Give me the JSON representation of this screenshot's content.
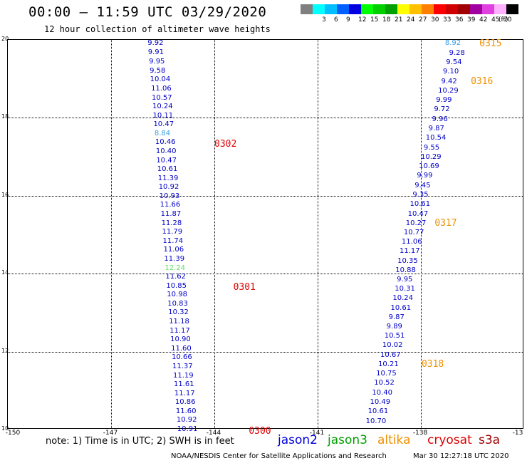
{
  "header": {
    "title": "00:00 – 11:59 UTC 03/29/2020",
    "subtitle": "12 hour collection of altimeter wave heights"
  },
  "legend": {
    "unit": "(ft)",
    "bins": [
      {
        "label": "",
        "color": "#808080"
      },
      {
        "label": "3",
        "color": "#00ffff"
      },
      {
        "label": "6",
        "color": "#00bfff"
      },
      {
        "label": "9",
        "color": "#0060ff"
      },
      {
        "label": "12",
        "color": "#0000e0"
      },
      {
        "label": "15",
        "color": "#00ff00"
      },
      {
        "label": "18",
        "color": "#00d000"
      },
      {
        "label": "21",
        "color": "#00a000"
      },
      {
        "label": "24",
        "color": "#ffff00"
      },
      {
        "label": "27",
        "color": "#ffc000"
      },
      {
        "label": "30",
        "color": "#ff8000"
      },
      {
        "label": "33",
        "color": "#ff0000"
      },
      {
        "label": "36",
        "color": "#d00000"
      },
      {
        "label": "39",
        "color": "#a00000"
      },
      {
        "label": "42",
        "color": "#a000a0"
      },
      {
        "label": "45",
        "color": "#e040e0"
      },
      {
        "label": "70",
        "color": "#ffb0ff"
      },
      {
        "label": "",
        "color": "#000000"
      }
    ]
  },
  "axes": {
    "xlim": [
      -150,
      -135
    ],
    "ylim": [
      10,
      20
    ],
    "x_ticks": [
      "-150",
      "-147",
      "-144",
      "-141",
      "-138",
      "-13"
    ],
    "y_ticks": [
      "20",
      "18",
      "16",
      "14",
      "12",
      "10"
    ]
  },
  "chart_data": {
    "type": "scatter",
    "title": "12 hour collection of altimeter wave heights",
    "unit": "ft",
    "tracks": [
      {
        "name": "jason2",
        "points": [
          {
            "lon": -145.94,
            "lat": 19.9,
            "value": "9.92",
            "color": "#0000c8"
          },
          {
            "lon": -145.93,
            "lat": 19.67,
            "value": "9.91",
            "color": "#0000c8"
          },
          {
            "lon": -145.9,
            "lat": 19.44,
            "value": "9.95",
            "color": "#0000c8"
          },
          {
            "lon": -145.88,
            "lat": 19.2,
            "value": "9.58",
            "color": "#0000c8"
          },
          {
            "lon": -145.87,
            "lat": 18.97,
            "value": "10.04",
            "color": "#0000c8"
          },
          {
            "lon": -145.84,
            "lat": 18.74,
            "value": "11.06",
            "color": "#0000c8"
          },
          {
            "lon": -145.82,
            "lat": 18.51,
            "value": "10.57",
            "color": "#0000c8"
          },
          {
            "lon": -145.8,
            "lat": 18.28,
            "value": "10.24",
            "color": "#0000c8"
          },
          {
            "lon": -145.79,
            "lat": 18.05,
            "value": "10.11",
            "color": "#0000c8"
          },
          {
            "lon": -145.77,
            "lat": 17.82,
            "value": "10.47",
            "color": "#0000c8"
          },
          {
            "lon": -145.74,
            "lat": 17.59,
            "value": "8.84",
            "color": "#3aa0e8"
          },
          {
            "lon": -145.72,
            "lat": 17.36,
            "value": "10.46",
            "color": "#0000c8"
          },
          {
            "lon": -145.7,
            "lat": 17.13,
            "value": "10.40",
            "color": "#0000c8"
          },
          {
            "lon": -145.69,
            "lat": 16.9,
            "value": "10.47",
            "color": "#0000c8"
          },
          {
            "lon": -145.66,
            "lat": 16.67,
            "value": "10.61",
            "color": "#0000c8"
          },
          {
            "lon": -145.64,
            "lat": 16.44,
            "value": "11.39",
            "color": "#0000c8"
          },
          {
            "lon": -145.62,
            "lat": 16.21,
            "value": "10.92",
            "color": "#0000c8"
          },
          {
            "lon": -145.6,
            "lat": 15.98,
            "value": "10.93",
            "color": "#0000c8"
          },
          {
            "lon": -145.58,
            "lat": 15.75,
            "value": "11.66",
            "color": "#0000c8"
          },
          {
            "lon": -145.56,
            "lat": 15.52,
            "value": "11.87",
            "color": "#0000c8"
          },
          {
            "lon": -145.54,
            "lat": 15.29,
            "value": "11.28",
            "color": "#0000c8"
          },
          {
            "lon": -145.52,
            "lat": 15.06,
            "value": "11.79",
            "color": "#0000c8"
          },
          {
            "lon": -145.5,
            "lat": 14.83,
            "value": "11.74",
            "color": "#0000c8"
          },
          {
            "lon": -145.48,
            "lat": 14.6,
            "value": "11.06",
            "color": "#0000c8"
          },
          {
            "lon": -145.46,
            "lat": 14.37,
            "value": "11.39",
            "color": "#0000c8"
          },
          {
            "lon": -145.44,
            "lat": 14.14,
            "value": "12.24",
            "color": "#60e060"
          },
          {
            "lon": -145.42,
            "lat": 13.91,
            "value": "11.62",
            "color": "#0000c8"
          },
          {
            "lon": -145.4,
            "lat": 13.68,
            "value": "10.85",
            "color": "#0000c8"
          },
          {
            "lon": -145.38,
            "lat": 13.45,
            "value": "10.98",
            "color": "#0000c8"
          },
          {
            "lon": -145.36,
            "lat": 13.22,
            "value": "10.83",
            "color": "#0000c8"
          },
          {
            "lon": -145.34,
            "lat": 12.99,
            "value": "10.32",
            "color": "#0000c8"
          },
          {
            "lon": -145.32,
            "lat": 12.76,
            "value": "11.18",
            "color": "#0000c8"
          },
          {
            "lon": -145.3,
            "lat": 12.53,
            "value": "11.17",
            "color": "#0000c8"
          },
          {
            "lon": -145.28,
            "lat": 12.3,
            "value": "10.90",
            "color": "#0000c8"
          },
          {
            "lon": -145.26,
            "lat": 12.07,
            "value": "11.60",
            "color": "#0000c8"
          },
          {
            "lon": -145.24,
            "lat": 11.84,
            "value": "10.66",
            "color": "#0000c8"
          },
          {
            "lon": -145.22,
            "lat": 11.61,
            "value": "11.37",
            "color": "#0000c8"
          },
          {
            "lon": -145.2,
            "lat": 11.38,
            "value": "11.19",
            "color": "#0000c8"
          },
          {
            "lon": -145.18,
            "lat": 11.15,
            "value": "11.61",
            "color": "#0000c8"
          },
          {
            "lon": -145.16,
            "lat": 10.92,
            "value": "11.17",
            "color": "#0000c8"
          },
          {
            "lon": -145.14,
            "lat": 10.69,
            "value": "10.86",
            "color": "#0000c8"
          },
          {
            "lon": -145.12,
            "lat": 10.46,
            "value": "11.60",
            "color": "#0000c8"
          },
          {
            "lon": -145.1,
            "lat": 10.23,
            "value": "10.92",
            "color": "#0000c8"
          },
          {
            "lon": -145.08,
            "lat": 10.0,
            "value": "10.91",
            "color": "#0000c8"
          }
        ],
        "date_labels": [
          {
            "lon": -144.0,
            "lat": 17.33,
            "text": "0302",
            "color": "#e00000"
          },
          {
            "lon": -143.45,
            "lat": 13.65,
            "text": "0301",
            "color": "#e00000"
          },
          {
            "lon": -143.0,
            "lat": 9.97,
            "text": "0300",
            "color": "#e00000"
          }
        ]
      },
      {
        "name": "altika",
        "points": [
          {
            "lon": -137.3,
            "lat": 19.9,
            "value": "8.92",
            "color": "#3aa0e8"
          },
          {
            "lon": -137.18,
            "lat": 19.65,
            "value": "9.28",
            "color": "#0000c8"
          },
          {
            "lon": -137.27,
            "lat": 19.41,
            "value": "9.54",
            "color": "#0000c8"
          },
          {
            "lon": -137.36,
            "lat": 19.17,
            "value": "9.10",
            "color": "#0000c8"
          },
          {
            "lon": -137.41,
            "lat": 18.93,
            "value": "9.42",
            "color": "#0000c8"
          },
          {
            "lon": -137.5,
            "lat": 18.68,
            "value": "10.29",
            "color": "#0000c8"
          },
          {
            "lon": -137.56,
            "lat": 18.44,
            "value": "9.99",
            "color": "#0000c8"
          },
          {
            "lon": -137.62,
            "lat": 18.2,
            "value": "9.72",
            "color": "#0000c8"
          },
          {
            "lon": -137.68,
            "lat": 17.96,
            "value": "9.96",
            "color": "#0000c8"
          },
          {
            "lon": -137.78,
            "lat": 17.72,
            "value": "9.87",
            "color": "#0000c8"
          },
          {
            "lon": -137.86,
            "lat": 17.47,
            "value": "10.54",
            "color": "#0000c8"
          },
          {
            "lon": -137.92,
            "lat": 17.23,
            "value": "9.55",
            "color": "#0000c8"
          },
          {
            "lon": -138.0,
            "lat": 16.99,
            "value": "10.29",
            "color": "#0000c8"
          },
          {
            "lon": -138.06,
            "lat": 16.75,
            "value": "10.69",
            "color": "#0000c8"
          },
          {
            "lon": -138.12,
            "lat": 16.5,
            "value": "9.99",
            "color": "#0000c8"
          },
          {
            "lon": -138.18,
            "lat": 16.26,
            "value": "9.45",
            "color": "#0000c8"
          },
          {
            "lon": -138.24,
            "lat": 16.02,
            "value": "9.35",
            "color": "#0000c8"
          },
          {
            "lon": -138.32,
            "lat": 15.78,
            "value": "10.61",
            "color": "#0000c8"
          },
          {
            "lon": -138.38,
            "lat": 15.53,
            "value": "10.47",
            "color": "#0000c8"
          },
          {
            "lon": -138.44,
            "lat": 15.29,
            "value": "10.27",
            "color": "#0000c8"
          },
          {
            "lon": -138.5,
            "lat": 15.05,
            "value": "10.77",
            "color": "#0000c8"
          },
          {
            "lon": -138.56,
            "lat": 14.81,
            "value": "11.06",
            "color": "#0000c8"
          },
          {
            "lon": -138.62,
            "lat": 14.57,
            "value": "11.17",
            "color": "#0000c8"
          },
          {
            "lon": -138.68,
            "lat": 14.32,
            "value": "10.35",
            "color": "#0000c8"
          },
          {
            "lon": -138.74,
            "lat": 14.08,
            "value": "10.88",
            "color": "#0000c8"
          },
          {
            "lon": -138.7,
            "lat": 13.84,
            "value": "9.95",
            "color": "#0000c8"
          },
          {
            "lon": -138.76,
            "lat": 13.6,
            "value": "10.31",
            "color": "#0000c8"
          },
          {
            "lon": -138.82,
            "lat": 13.36,
            "value": "10.24",
            "color": "#0000c8"
          },
          {
            "lon": -138.88,
            "lat": 13.11,
            "value": "10.61",
            "color": "#0000c8"
          },
          {
            "lon": -138.94,
            "lat": 12.87,
            "value": "9.87",
            "color": "#0000c8"
          },
          {
            "lon": -139.0,
            "lat": 12.63,
            "value": "9.89",
            "color": "#0000c8"
          },
          {
            "lon": -139.06,
            "lat": 12.39,
            "value": "10.51",
            "color": "#0000c8"
          },
          {
            "lon": -139.12,
            "lat": 12.15,
            "value": "10.02",
            "color": "#0000c8"
          },
          {
            "lon": -139.18,
            "lat": 11.9,
            "value": "10.67",
            "color": "#0000c8"
          },
          {
            "lon": -139.24,
            "lat": 11.66,
            "value": "10.21",
            "color": "#0000c8"
          },
          {
            "lon": -139.3,
            "lat": 11.42,
            "value": "10.75",
            "color": "#0000c8"
          },
          {
            "lon": -139.36,
            "lat": 11.18,
            "value": "10.52",
            "color": "#0000c8"
          },
          {
            "lon": -139.42,
            "lat": 10.94,
            "value": "10.40",
            "color": "#0000c8"
          },
          {
            "lon": -139.48,
            "lat": 10.69,
            "value": "10.49",
            "color": "#0000c8"
          },
          {
            "lon": -139.54,
            "lat": 10.45,
            "value": "10.61",
            "color": "#0000c8"
          },
          {
            "lon": -139.6,
            "lat": 10.21,
            "value": "10.70",
            "color": "#0000c8"
          }
        ],
        "date_labels": [
          {
            "lon": -136.3,
            "lat": 19.91,
            "text": "0315",
            "color": "#f09000"
          },
          {
            "lon": -136.55,
            "lat": 18.94,
            "text": "0316",
            "color": "#f09000"
          },
          {
            "lon": -137.6,
            "lat": 15.31,
            "text": "0317",
            "color": "#f09000"
          },
          {
            "lon": -137.98,
            "lat": 11.69,
            "text": "0318",
            "color": "#f09000"
          }
        ]
      }
    ]
  },
  "footer": {
    "note": "note: 1) Time is in UTC; 2) SWH is in feet",
    "satellites": [
      {
        "name": "jason2",
        "color": "#0000e0"
      },
      {
        "name": "jason3",
        "color": "#00a000"
      },
      {
        "name": "altika",
        "color": "#f09000"
      },
      {
        "name": "cryosat",
        "color": "#e00000"
      },
      {
        "name": "s3a",
        "color": "#a00000"
      }
    ],
    "credit": "NOAA/NESDIS Center for Satellite Applications and Research",
    "timestamp": "Mar 30 12:27:18 UTC 2020"
  }
}
